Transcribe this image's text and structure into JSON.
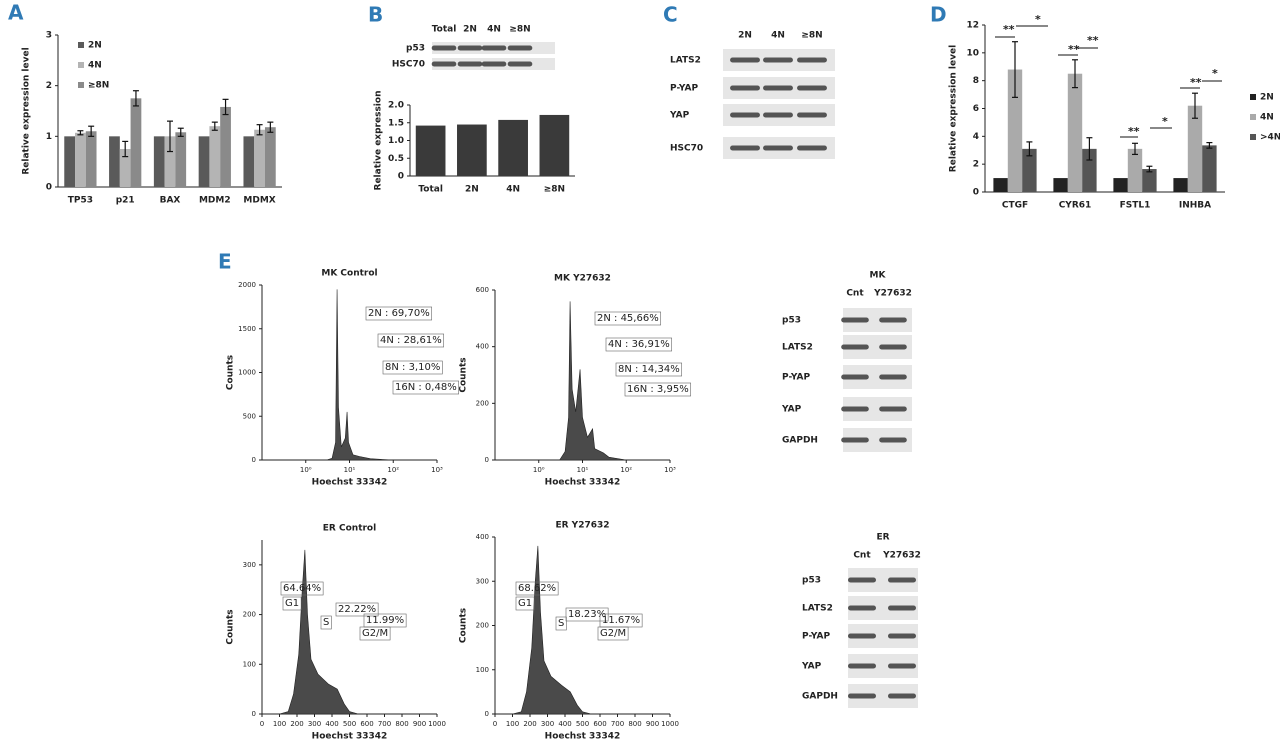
{
  "panel_letters": [
    "A",
    "B",
    "C",
    "D",
    "E"
  ],
  "chart_data": [
    {
      "type": "bar",
      "y_label": "Relative expression level",
      "categories": [
        "TP53",
        "p21",
        "BAX",
        "MDM2",
        "MDMX"
      ],
      "series": [
        {
          "name": "2N",
          "color": "#5a5a5a",
          "values": [
            1,
            1,
            1,
            1,
            1
          ]
        },
        {
          "name": "4N",
          "color": "#b4b4b4",
          "values": [
            1.07,
            0.75,
            1.0,
            1.2,
            1.13
          ],
          "errors": [
            0.04,
            0.15,
            0.3,
            0.08,
            0.1
          ]
        },
        {
          "name": "≥8N",
          "color": "#8a8a8a",
          "values": [
            1.1,
            1.75,
            1.08,
            1.58,
            1.18
          ],
          "errors": [
            0.1,
            0.15,
            0.08,
            0.15,
            0.1
          ]
        }
      ],
      "ylim": [
        0,
        3
      ],
      "yticks": [
        0,
        1,
        2,
        3
      ]
    },
    {
      "type": "bar",
      "y_label": "Relative expression",
      "categories": [
        "Total",
        "2N",
        "4N",
        "≥8N"
      ],
      "color": "#3a3a3a",
      "values": [
        1.42,
        1.45,
        1.58,
        1.72
      ],
      "ylim": [
        0,
        2
      ],
      "yticks": [
        0,
        {
          "value": 0.5,
          "label": "0.5"
        },
        {
          "value": 1,
          "label": "1.0"
        },
        {
          "value": 1.5,
          "label": "1.5"
        },
        {
          "value": 2,
          "label": "2.0"
        }
      ]
    },
    {
      "type": "bar",
      "y_label": "Relative expression level",
      "categories": [
        "CTGF",
        "CYR61",
        "FSTL1",
        "INHBA"
      ],
      "series": [
        {
          "name": "2N",
          "color": "#222222",
          "values": [
            1,
            1,
            1,
            1
          ]
        },
        {
          "name": "4N",
          "color": "#aaaaaa",
          "values": [
            8.8,
            8.5,
            3.1,
            6.2
          ],
          "errors": [
            2.0,
            1.0,
            0.4,
            0.9
          ]
        },
        {
          "name": ">4N",
          "color": "#555555",
          "values": [
            3.1,
            3.1,
            1.65,
            3.35
          ],
          "errors": [
            0.5,
            0.8,
            0.2,
            0.2
          ]
        }
      ],
      "ylim": [
        0,
        12
      ],
      "yticks": [
        0,
        2,
        4,
        6,
        8,
        10,
        12
      ],
      "annotations": [
        "**",
        "*",
        "**",
        "**",
        "**",
        "*",
        "**",
        "*"
      ]
    },
    {
      "type": "area",
      "title": "MK Control",
      "x_label": "Hoechst 33342",
      "y_label": "Counts",
      "xlog": true,
      "x": [
        3,
        4,
        4.8,
        5.2,
        5.6,
        6.5,
        8,
        8.8,
        9.5,
        12,
        17,
        30,
        60,
        100
      ],
      "values": [
        0,
        20,
        200,
        1950,
        600,
        150,
        250,
        550,
        200,
        60,
        40,
        15,
        5,
        0
      ],
      "xlim": [
        0.1,
        1000
      ],
      "xticks": [
        {
          "value": 1,
          "label": "10⁰"
        },
        {
          "value": 10,
          "label": "10¹"
        },
        {
          "value": 100,
          "label": "10²"
        },
        {
          "value": 1000,
          "label": "10³"
        }
      ],
      "ylim": [
        0,
        2000
      ],
      "yticks": [
        0,
        500,
        1000,
        1500,
        2000
      ],
      "annotations": [
        "2N : 69,70%",
        "4N : 28,61%",
        "8N : 3,10%",
        "16N : 0,48%"
      ]
    },
    {
      "type": "area",
      "title": "MK Y27632",
      "x_label": "Hoechst 33342",
      "y_label": "Counts",
      "xlog": true,
      "x": [
        3,
        4,
        4.8,
        5.2,
        5.8,
        7,
        8.8,
        10,
        13,
        17,
        19,
        30,
        40,
        100
      ],
      "values": [
        0,
        30,
        150,
        560,
        250,
        170,
        320,
        150,
        80,
        110,
        40,
        25,
        10,
        0
      ],
      "xlim": [
        0.1,
        1000
      ],
      "xticks": [
        {
          "value": 1,
          "label": "10⁰"
        },
        {
          "value": 10,
          "label": "10¹"
        },
        {
          "value": 100,
          "label": "10²"
        },
        {
          "value": 1000,
          "label": "10³"
        }
      ],
      "ylim": [
        0,
        600
      ],
      "yticks": [
        0,
        200,
        400,
        600
      ],
      "annotations": [
        "2N : 45,66%",
        "4N : 36,91%",
        "8N : 14,34%",
        "16N : 3,95%"
      ]
    },
    {
      "type": "area",
      "title": "ER Control",
      "x_label": "Hoechst 33342",
      "y_label": "Counts",
      "xlog": false,
      "x": [
        100,
        150,
        180,
        210,
        230,
        245,
        260,
        280,
        320,
        380,
        430,
        470,
        500,
        550
      ],
      "values": [
        0,
        5,
        40,
        120,
        250,
        330,
        200,
        110,
        80,
        60,
        50,
        20,
        5,
        0
      ],
      "xlim": [
        0,
        1000
      ],
      "xticks": [
        0,
        100,
        200,
        300,
        400,
        500,
        600,
        700,
        800,
        900,
        1000
      ],
      "ylim": [
        0,
        350
      ],
      "yticks": [
        0,
        100,
        200,
        300
      ],
      "annotations": [
        "64.64%",
        "G1",
        "22.22%",
        "S",
        "11.99%",
        "G2/M"
      ]
    },
    {
      "type": "area",
      "title": "ER Y27632",
      "x_label": "Hoechst 33342",
      "y_label": "Counts",
      "xlog": false,
      "x": [
        100,
        150,
        180,
        210,
        230,
        245,
        260,
        280,
        320,
        380,
        430,
        470,
        500,
        550
      ],
      "values": [
        0,
        5,
        50,
        150,
        300,
        380,
        230,
        120,
        85,
        65,
        50,
        20,
        5,
        0
      ],
      "xlim": [
        0,
        1000
      ],
      "xticks": [
        0,
        100,
        200,
        300,
        400,
        500,
        600,
        700,
        800,
        900,
        1000
      ],
      "ylim": [
        0,
        400
      ],
      "yticks": [
        0,
        100,
        200,
        300,
        400
      ],
      "annotations": [
        "68.62%",
        "G1",
        "18.23%",
        "S",
        "11.67%",
        "G2/M"
      ]
    }
  ],
  "blots": [
    {
      "columns": [
        "Total",
        "2N",
        "4N",
        "≥8N"
      ],
      "rows": [
        "p53",
        "HSC70"
      ]
    },
    {
      "columns": [
        "2N",
        "4N",
        "≥8N"
      ],
      "rows": [
        "LATS2",
        "P-YAP",
        "YAP",
        "HSC70"
      ]
    },
    {
      "title": "MK",
      "columns": [
        "Cnt",
        "Y27632"
      ],
      "rows": [
        "p53",
        "LATS2",
        "P-YAP",
        "YAP",
        "GAPDH"
      ]
    },
    {
      "title": "ER",
      "columns": [
        "Cnt",
        "Y27632"
      ],
      "rows": [
        "p53",
        "LATS2",
        "P-YAP",
        "YAP",
        "GAPDH"
      ]
    }
  ]
}
